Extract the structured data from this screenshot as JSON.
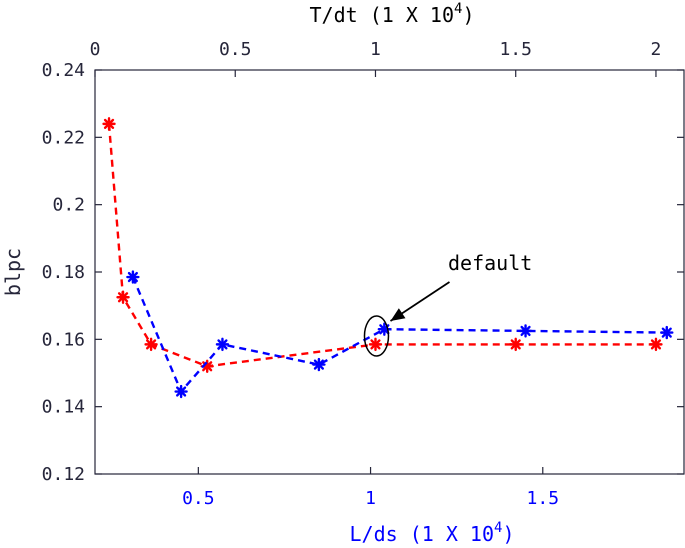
{
  "chart_data": {
    "type": "line",
    "ylabel": "blpc",
    "ylim": [
      0.12,
      0.24
    ],
    "yticks": [
      "0.12",
      "0.14",
      "0.16",
      "0.18",
      "0.2",
      "0.22",
      "0.24"
    ],
    "ytick_values": [
      0.12,
      0.14,
      0.16,
      0.18,
      0.2,
      0.22,
      0.24
    ],
    "x_bottom": {
      "label_prefix": "L/ds (1 X 10",
      "label_exp": "4",
      "label_suffix": ")",
      "color": "#0000ff",
      "ticks": [
        "0.5",
        "1",
        "1.5"
      ],
      "tick_values": [
        0.5,
        1.0,
        1.5
      ],
      "range": [
        0.2,
        1.91
      ]
    },
    "x_top": {
      "label_prefix": "T/dt (1 X 10",
      "label_exp": "4",
      "label_suffix": ")",
      "color": "#000000",
      "ticks": [
        "0",
        "0.5",
        "1",
        "1.5",
        "2"
      ],
      "tick_values": [
        0,
        0.5,
        1.0,
        1.5,
        2.0
      ],
      "range": [
        0,
        2.1
      ]
    },
    "series": [
      {
        "axis": "top",
        "color": "#ff0000",
        "x": [
          0.05,
          0.1,
          0.2,
          0.4,
          1.0,
          1.5,
          2.0
        ],
        "y": [
          0.224,
          0.1725,
          0.1585,
          0.152,
          0.1585,
          0.1585,
          0.1585
        ]
      },
      {
        "axis": "bottom",
        "color": "#0000ff",
        "x": [
          0.31,
          0.45,
          0.57,
          0.85,
          1.04,
          1.45,
          1.86
        ],
        "y": [
          0.1785,
          0.1445,
          0.1585,
          0.1525,
          0.163,
          0.1625,
          0.162
        ]
      }
    ],
    "annotation": {
      "text": "default",
      "x_top": 1.0,
      "y": 0.161
    }
  }
}
